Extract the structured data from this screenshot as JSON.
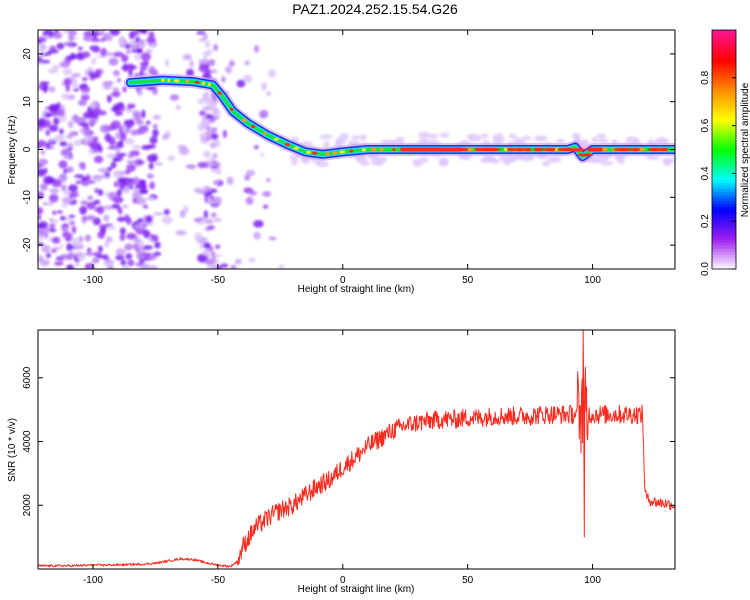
{
  "title": "PAZ1.2024.252.15.54.G26",
  "colors": {
    "snr_line": "#ff2a1e",
    "colormap": [
      "#ffffff",
      "#a020f0",
      "#0000ff",
      "#00ffff",
      "#00ff00",
      "#ffff00",
      "#ff8c00",
      "#ff0000",
      "#ff1493"
    ]
  },
  "chart_data": [
    {
      "type": "heatmap",
      "title": "PAZ1.2024.252.15.54.G26",
      "xlabel": "Height of straight line (km)",
      "ylabel": "Frequency (Hz)",
      "xlim": [
        -122,
        133
      ],
      "ylim": [
        -25,
        25
      ],
      "xticks": [
        "-100",
        "-50",
        "0",
        "50",
        "100"
      ],
      "yticks": [
        "20",
        "10",
        "0",
        "-10",
        "-20"
      ],
      "colorbar": {
        "label": "Normalized spectral amplitude",
        "range": [
          0,
          1
        ],
        "ticks": [
          "0.0",
          "0.2",
          "0.4",
          "0.6",
          "0.8"
        ]
      },
      "ridge": [
        {
          "x": -85,
          "y": 14
        },
        {
          "x": -72,
          "y": 14.5
        },
        {
          "x": -60,
          "y": 14.2
        },
        {
          "x": -52,
          "y": 13.5
        },
        {
          "x": -48,
          "y": 11
        },
        {
          "x": -44,
          "y": 8
        },
        {
          "x": -38,
          "y": 5.5
        },
        {
          "x": -30,
          "y": 3
        },
        {
          "x": -22,
          "y": 1
        },
        {
          "x": -15,
          "y": -0.5
        },
        {
          "x": -8,
          "y": -1
        },
        {
          "x": 0,
          "y": -0.5
        },
        {
          "x": 10,
          "y": 0
        },
        {
          "x": 25,
          "y": 0
        },
        {
          "x": 50,
          "y": 0
        },
        {
          "x": 75,
          "y": 0
        },
        {
          "x": 90,
          "y": 0
        },
        {
          "x": 93,
          "y": 0.5
        },
        {
          "x": 96,
          "y": -1.5
        },
        {
          "x": 100,
          "y": 0
        },
        {
          "x": 133,
          "y": 0
        }
      ]
    },
    {
      "type": "line",
      "xlabel": "Height of straight line (km)",
      "ylabel": "SNR (10 * v/v)",
      "xlim": [
        -122,
        133
      ],
      "ylim": [
        0,
        7500
      ],
      "xticks": [
        "-100",
        "-50",
        "0",
        "50",
        "100"
      ],
      "yticks": [
        "6000",
        "4000",
        "2000"
      ],
      "series": [
        {
          "x": [
            -122,
            -110,
            -100,
            -90,
            -80,
            -75,
            -70,
            -65,
            -60,
            -55,
            -50,
            -45,
            -42,
            -40,
            -35,
            -30,
            -25,
            -20,
            -15,
            -10,
            -5,
            0,
            5,
            10,
            15,
            20,
            25,
            30,
            35,
            40,
            45,
            50,
            55,
            60,
            65,
            70,
            75,
            80,
            85,
            90,
            94,
            96,
            98,
            100,
            105,
            110,
            115,
            120,
            121,
            122,
            125,
            130,
            133
          ],
          "y": [
            100,
            100,
            120,
            130,
            150,
            180,
            250,
            320,
            300,
            200,
            120,
            80,
            250,
            700,
            1300,
            1600,
            1850,
            2000,
            2300,
            2600,
            2800,
            3200,
            3500,
            3850,
            4100,
            4350,
            4500,
            4600,
            4650,
            4700,
            4700,
            4750,
            4750,
            4800,
            4800,
            4800,
            4800,
            4850,
            4850,
            4850,
            4850,
            4850,
            4850,
            4850,
            4850,
            4850,
            4850,
            4850,
            2400,
            2200,
            2100,
            2050,
            2000
          ]
        }
      ]
    }
  ]
}
